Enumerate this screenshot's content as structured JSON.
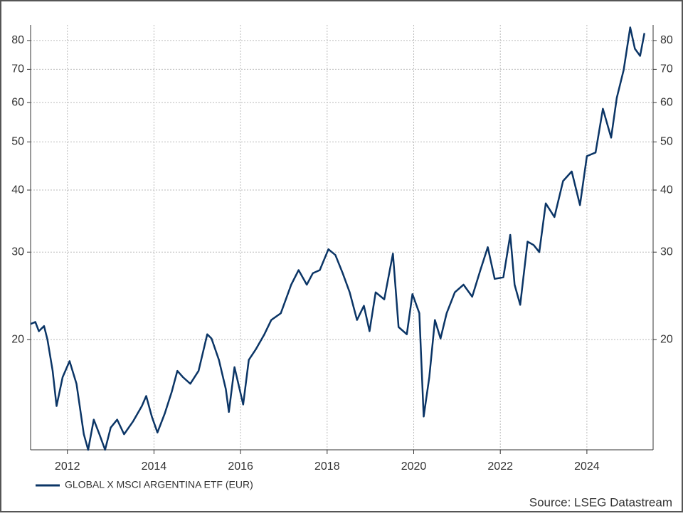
{
  "chart_data": {
    "type": "line",
    "x": [
      2011.15,
      2011.26,
      2011.34,
      2011.46,
      2011.54,
      2011.66,
      2011.75,
      2011.89,
      2012.05,
      2012.21,
      2012.38,
      2012.48,
      2012.61,
      2012.74,
      2012.87,
      2013.0,
      2013.15,
      2013.31,
      2013.52,
      2013.72,
      2013.82,
      2013.95,
      2014.08,
      2014.25,
      2014.41,
      2014.54,
      2014.67,
      2014.84,
      2015.03,
      2015.23,
      2015.33,
      2015.5,
      2015.66,
      2015.73,
      2015.86,
      2016.06,
      2016.19,
      2016.35,
      2016.55,
      2016.71,
      2016.93,
      2017.17,
      2017.34,
      2017.53,
      2017.67,
      2017.83,
      2018.03,
      2018.19,
      2018.36,
      2018.52,
      2018.69,
      2018.85,
      2018.98,
      2019.12,
      2019.32,
      2019.52,
      2019.65,
      2019.84,
      2019.97,
      2020.13,
      2020.23,
      2020.36,
      2020.49,
      2020.62,
      2020.76,
      2020.95,
      2021.15,
      2021.35,
      2021.54,
      2021.71,
      2021.87,
      2022.07,
      2022.23,
      2022.33,
      2022.46,
      2022.63,
      2022.77,
      2022.9,
      2023.05,
      2023.25,
      2023.45,
      2023.65,
      2023.84,
      2024.0,
      2024.2,
      2024.37,
      2024.56,
      2024.69,
      2024.85,
      2025.0,
      2025.11,
      2025.23,
      2025.33
    ],
    "series": [
      {
        "name": "GLOBAL X MSCI ARGENTINA ETF (EUR)",
        "color": "#0b3566",
        "values": [
          21.5,
          21.7,
          20.8,
          21.3,
          20.0,
          17.3,
          14.7,
          16.8,
          18.1,
          16.3,
          12.9,
          12.0,
          13.8,
          12.9,
          12.0,
          13.3,
          13.8,
          12.9,
          13.7,
          14.7,
          15.4,
          14.0,
          13.0,
          14.2,
          15.7,
          17.3,
          16.8,
          16.3,
          17.3,
          20.5,
          20.1,
          18.2,
          15.9,
          14.3,
          17.6,
          14.8,
          18.2,
          19.1,
          20.5,
          21.9,
          22.6,
          25.8,
          27.6,
          25.8,
          27.2,
          27.6,
          30.4,
          29.6,
          27.2,
          24.9,
          21.9,
          23.4,
          20.8,
          24.9,
          24.1,
          29.8,
          21.2,
          20.5,
          24.7,
          22.6,
          14.0,
          16.8,
          21.9,
          20.1,
          22.6,
          24.9,
          25.8,
          24.4,
          27.6,
          30.7,
          26.5,
          26.7,
          32.5,
          25.8,
          23.5,
          31.5,
          31.0,
          30.0,
          37.6,
          35.3,
          41.7,
          43.6,
          37.3,
          46.8,
          47.6,
          58.3,
          51.0,
          61.3,
          69.8,
          85.0,
          77.0,
          74.5,
          82.8
        ]
      }
    ],
    "xlim": [
      2011.15,
      2025.53
    ],
    "xticks": [
      2012,
      2014,
      2016,
      2018,
      2020,
      2022,
      2024
    ],
    "ylim": [
      12,
      86
    ],
    "yticks": [
      20,
      30,
      40,
      50,
      60,
      70,
      80
    ],
    "y2lim": [
      12,
      86
    ],
    "y2ticks": [
      20,
      30,
      40,
      50,
      60,
      70,
      80
    ],
    "log_scale": true,
    "grid": true,
    "legend": "bottom-left",
    "source": "Source: LSEG Datastream"
  }
}
